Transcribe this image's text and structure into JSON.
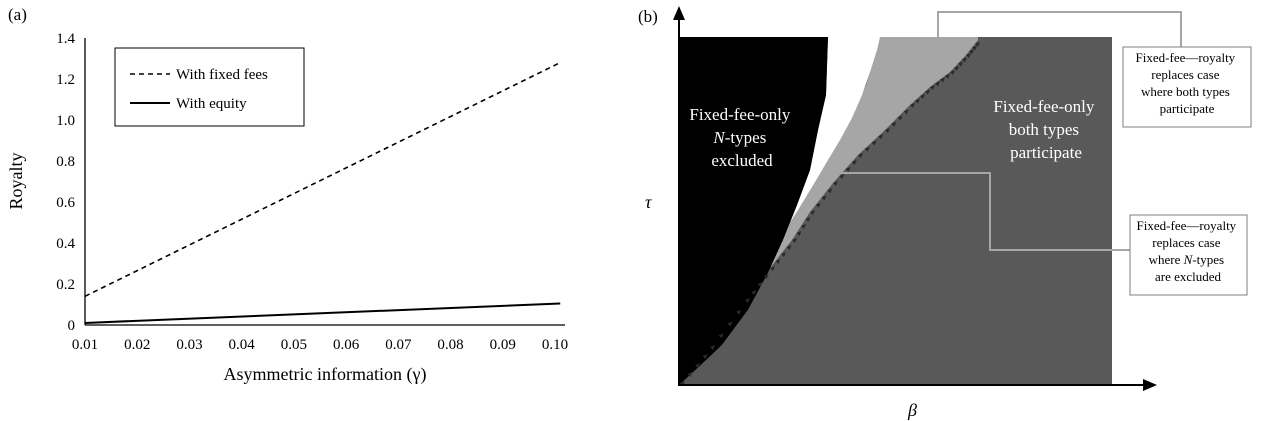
{
  "colors": {
    "series_dashed": "#000000",
    "series_solid": "#000000",
    "region_excluded": "#000000",
    "region_gap": "#ffffff",
    "region_royalty_excluded": "#a6a6a6",
    "region_both": "#595959",
    "callout_box_border": "#7f7f7f",
    "callout_line": "#a6a6a6"
  },
  "chart_data": [
    {
      "panel": "(a)",
      "type": "line",
      "xlabel": "Asymmetric information (γ)",
      "ylabel": "Royalty",
      "xlim": [
        0.01,
        0.1
      ],
      "ylim": [
        0,
        1.4
      ],
      "x_ticks": [
        "0.01",
        "0.02",
        "0.03",
        "0.04",
        "0.05",
        "0.06",
        "0.07",
        "0.08",
        "0.09",
        "0.10"
      ],
      "y_ticks": [
        "0",
        "0.2",
        "0.4",
        "0.6",
        "0.8",
        "1.0",
        "1.2",
        "1.4"
      ],
      "grid": false,
      "legend_position": "top-left",
      "series": [
        {
          "name": "With fixed fees",
          "style": "dashed",
          "x": [
            0.01,
            0.101
          ],
          "y": [
            0.14,
            1.28
          ]
        },
        {
          "name": "With equity",
          "style": "solid",
          "x": [
            0.01,
            0.101
          ],
          "y": [
            0.01,
            0.105
          ]
        }
      ]
    },
    {
      "panel": "(b)",
      "type": "area",
      "xlabel": "β",
      "ylabel": "τ",
      "x_ticks": [],
      "y_ticks": [],
      "regions": [
        {
          "label_lines": [
            "Fixed-fee-only",
            "types",
            "excluded"
          ],
          "italic_prefix": "N-",
          "color": "black"
        },
        {
          "label_lines": [
            "Fixed-fee-only",
            "both types",
            "participate"
          ],
          "color": "dark gray"
        }
      ],
      "annotations": [
        {
          "lines": [
            "Fixed-fee—royalty",
            "replaces case",
            "where both types",
            "participate"
          ]
        },
        {
          "lines": [
            "Fixed-fee—royalty",
            "replaces case",
            "where ",
            "types",
            "are excluded"
          ],
          "italic_part": "N-"
        }
      ]
    }
  ]
}
